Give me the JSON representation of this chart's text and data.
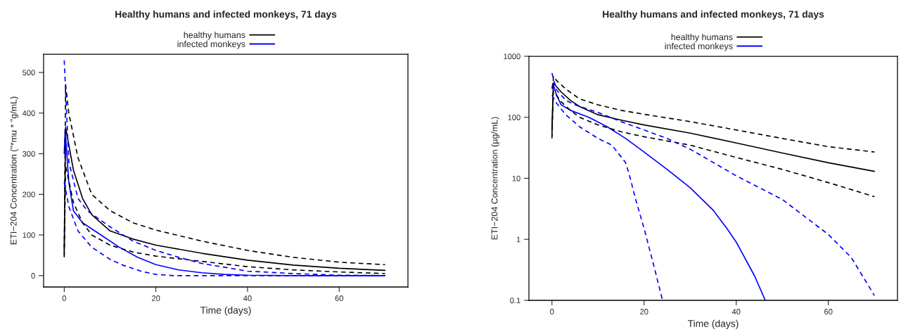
{
  "chart_data": [
    {
      "type": "line",
      "title": "Healthy humans and infected monkeys, 71 days",
      "xlabel": "Time (days)",
      "ylabel": "ETI−204 Concentration (\"*mu * \"g/mL)",
      "legend": "top",
      "grid": false,
      "xlim": [
        -4.5,
        75
      ],
      "xticks": [
        0,
        20,
        40,
        60
      ],
      "ylim": [
        -28,
        545
      ],
      "yticks": [
        0,
        100,
        200,
        300,
        400,
        500
      ],
      "series": [
        {
          "name": "healthy humans",
          "color": "#000000",
          "line_style": "solid",
          "x": [
            0,
            0.3,
            2,
            4,
            6,
            10,
            15,
            20,
            30,
            40,
            50,
            60,
            70
          ],
          "values": [
            60,
            365,
            260,
            190,
            150,
            110,
            90,
            75,
            55,
            38,
            26,
            18,
            13
          ]
        },
        {
          "name": "infected monkeys",
          "color": "#0000ff",
          "line_style": "solid",
          "x": [
            0,
            0.2,
            1,
            2,
            4,
            8,
            12,
            16,
            20,
            25,
            30,
            35,
            40,
            50,
            70
          ],
          "values": [
            300,
            360,
            230,
            160,
            130,
            100,
            70,
            45,
            27,
            14,
            7,
            3,
            1,
            0,
            0
          ]
        },
        {
          "color": "#000000",
          "line_style": "dashed",
          "x": [
            0,
            0.3,
            1,
            3,
            6,
            10,
            15,
            20,
            30,
            40,
            50,
            60,
            70
          ],
          "values": [
            45,
            470,
            400,
            290,
            200,
            160,
            130,
            112,
            85,
            62,
            45,
            33,
            27
          ]
        },
        {
          "color": "#000000",
          "line_style": "dashed",
          "x": [
            0,
            0.3,
            2,
            4,
            6,
            10,
            15,
            20,
            30,
            40,
            50,
            60,
            70
          ],
          "values": [
            50,
            270,
            180,
            130,
            100,
            75,
            58,
            48,
            35,
            22,
            14,
            9,
            5
          ]
        },
        {
          "color": "#0000ff",
          "line_style": "dashed",
          "x": [
            0,
            1,
            3,
            5,
            10,
            15,
            20,
            25,
            30,
            40,
            50,
            60,
            70
          ],
          "values": [
            530,
            280,
            190,
            160,
            120,
            85,
            62,
            45,
            30,
            11,
            5,
            1,
            0
          ]
        },
        {
          "color": "#0000ff",
          "line_style": "dashed",
          "x": [
            0,
            1,
            3,
            6,
            10,
            13,
            17,
            20,
            24,
            40,
            70
          ],
          "values": [
            230,
            170,
            110,
            70,
            40,
            25,
            10,
            3,
            0,
            0,
            0
          ]
        }
      ]
    },
    {
      "type": "line",
      "title": "Healthy humans and infected monkeys, 71 days",
      "xlabel": "Time (days)",
      "ylabel": "ETI−204 Concentration (µg/mL)",
      "legend": "top",
      "grid": false,
      "log": "y",
      "xlim": [
        -5,
        75
      ],
      "xticks": [
        0,
        20,
        40,
        60
      ],
      "ylim": [
        0.1,
        1000
      ],
      "yticks": [
        0.1,
        1,
        10,
        100,
        1000
      ],
      "series": [
        {
          "name": "healthy humans",
          "color": "#000000",
          "line_style": "solid",
          "x": [
            0,
            0.3,
            2,
            4,
            6,
            10,
            15,
            20,
            30,
            40,
            50,
            60,
            70
          ],
          "values": [
            60,
            365,
            260,
            190,
            150,
            110,
            90,
            75,
            55,
            38,
            26,
            18,
            13
          ]
        },
        {
          "name": "infected monkeys",
          "color": "#0000ff",
          "line_style": "solid",
          "x": [
            0,
            0.2,
            1,
            2,
            4,
            8,
            12,
            16,
            20,
            25,
            30,
            35,
            38,
            40,
            44,
            46.3
          ],
          "values": [
            300,
            360,
            230,
            160,
            130,
            100,
            70,
            45,
            27,
            14,
            7,
            3,
            1.5,
            0.9,
            0.25,
            0.1
          ]
        },
        {
          "color": "#000000",
          "line_style": "dashed",
          "x": [
            0,
            0.3,
            1,
            3,
            6,
            10,
            15,
            20,
            30,
            40,
            50,
            60,
            70
          ],
          "values": [
            45,
            470,
            400,
            290,
            200,
            160,
            130,
            112,
            85,
            62,
            45,
            33,
            27
          ]
        },
        {
          "color": "#000000",
          "line_style": "dashed",
          "x": [
            0,
            0.3,
            2,
            4,
            6,
            10,
            15,
            20,
            30,
            40,
            50,
            60,
            70
          ],
          "values": [
            50,
            270,
            180,
            130,
            100,
            75,
            58,
            48,
            35,
            22,
            14,
            8.5,
            5
          ]
        },
        {
          "color": "#0000ff",
          "line_style": "dashed",
          "x": [
            0,
            1,
            3,
            5,
            10,
            15,
            20,
            25,
            30,
            40,
            50,
            60,
            65,
            70
          ],
          "values": [
            530,
            280,
            190,
            160,
            120,
            85,
            62,
            45,
            30,
            11,
            4.5,
            1.2,
            0.5,
            0.12
          ]
        },
        {
          "color": "#0000ff",
          "line_style": "dashed",
          "x": [
            0,
            1,
            3,
            6,
            10,
            13,
            16,
            17,
            18,
            20,
            22,
            24
          ],
          "values": [
            230,
            170,
            110,
            70,
            45,
            35,
            18,
            10,
            5,
            1.5,
            0.4,
            0.1
          ]
        }
      ]
    }
  ]
}
